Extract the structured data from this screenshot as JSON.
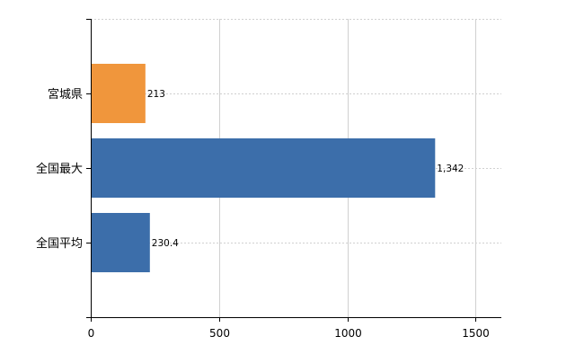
{
  "chart_data": {
    "type": "bar",
    "orientation": "horizontal",
    "categories": [
      "宮城県",
      "全国最大",
      "全国平均"
    ],
    "values": [
      213,
      1342,
      230.4
    ],
    "data_labels": [
      "213",
      "1,342",
      "230.4"
    ],
    "bar_colors": [
      "#F0963C",
      "#3C6EAA",
      "#3C6EAA"
    ],
    "xlim": [
      0,
      1600
    ],
    "xticks": [
      0,
      500,
      1000,
      1500
    ],
    "xtick_labels": [
      "0",
      "500",
      "1000",
      "1500"
    ],
    "title": "",
    "xlabel": "",
    "ylabel": "",
    "grid": true,
    "legend": "none"
  }
}
